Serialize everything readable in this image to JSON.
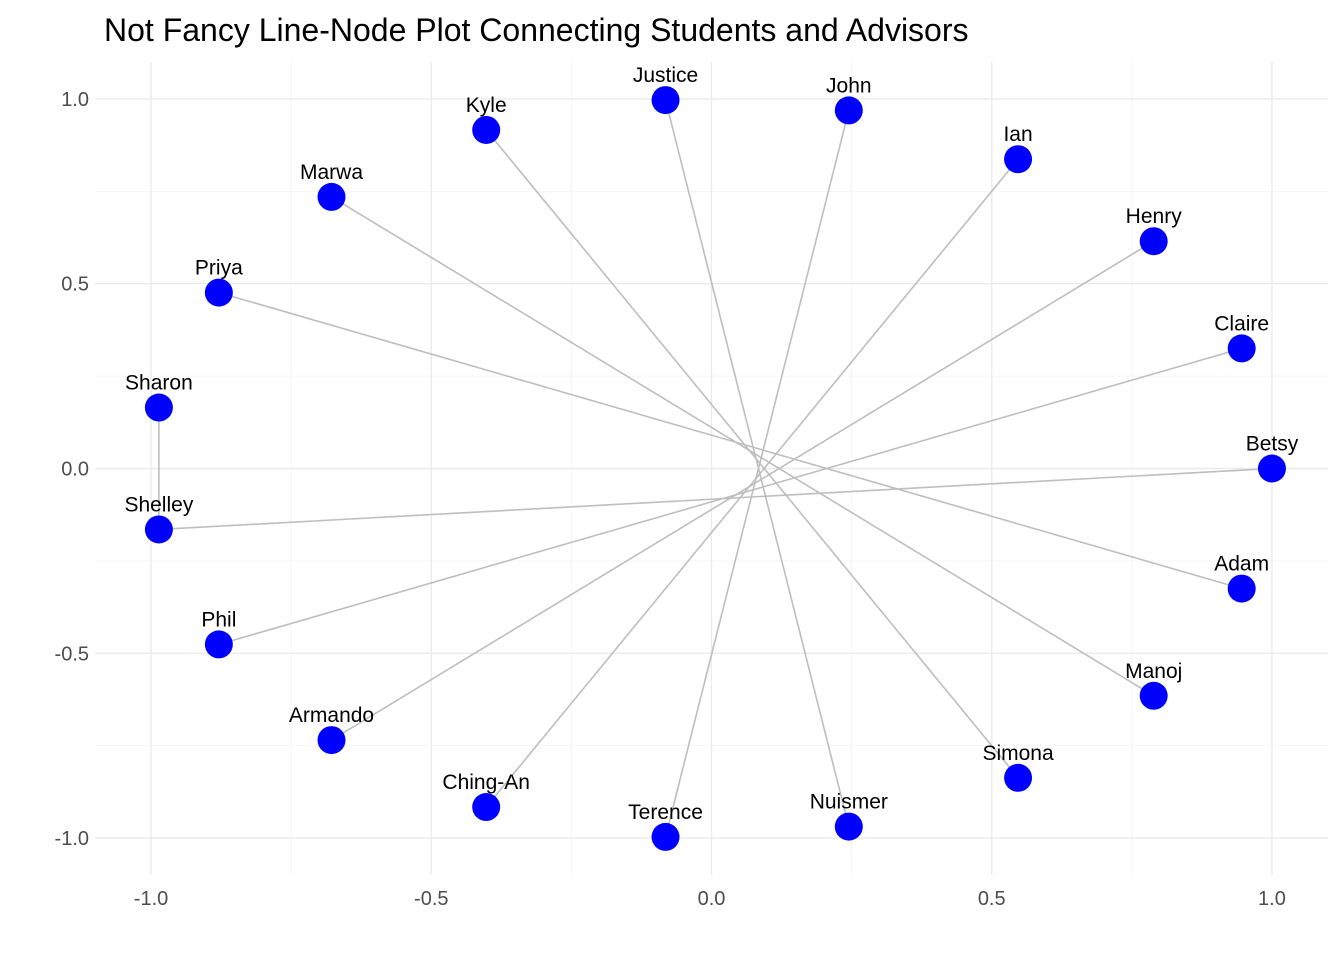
{
  "chart_data": {
    "type": "scatter",
    "title": "Not Fancy Line-Node Plot Connecting Students and Advisors",
    "xlabel": "",
    "ylabel": "",
    "xlim": [
      -1.1,
      1.1
    ],
    "ylim": [
      -1.1,
      1.1
    ],
    "x_ticks": [
      -1.0,
      -0.5,
      0.0,
      0.5,
      1.0
    ],
    "x_tick_labels": [
      "-1.0",
      "-0.5",
      "0.0",
      "0.5",
      "1.0"
    ],
    "y_ticks": [
      -1.0,
      -0.5,
      0.0,
      0.5,
      1.0
    ],
    "y_tick_labels": [
      "-1.0",
      "-0.5",
      "0.0",
      "0.5",
      "1.0"
    ],
    "grid": true,
    "node_color": "#0000ff",
    "edge_color": "#bebebe",
    "nodes": [
      {
        "name": "Betsy",
        "x": 1.0,
        "y": 0.0
      },
      {
        "name": "Claire",
        "x": 0.946,
        "y": 0.325
      },
      {
        "name": "Henry",
        "x": 0.789,
        "y": 0.615
      },
      {
        "name": "Ian",
        "x": 0.547,
        "y": 0.837
      },
      {
        "name": "John",
        "x": 0.245,
        "y": 0.969
      },
      {
        "name": "Justice",
        "x": -0.082,
        "y": 0.997
      },
      {
        "name": "Kyle",
        "x": -0.402,
        "y": 0.916
      },
      {
        "name": "Marwa",
        "x": -0.678,
        "y": 0.735
      },
      {
        "name": "Priya",
        "x": -0.879,
        "y": 0.476
      },
      {
        "name": "Sharon",
        "x": -0.986,
        "y": 0.165
      },
      {
        "name": "Shelley",
        "x": -0.986,
        "y": -0.165
      },
      {
        "name": "Phil",
        "x": -0.879,
        "y": -0.476
      },
      {
        "name": "Armando",
        "x": -0.678,
        "y": -0.735
      },
      {
        "name": "Ching-An",
        "x": -0.402,
        "y": -0.916
      },
      {
        "name": "Terence",
        "x": -0.082,
        "y": -0.997
      },
      {
        "name": "Nuismer",
        "x": 0.245,
        "y": -0.969
      },
      {
        "name": "Simona",
        "x": 0.547,
        "y": -0.837
      },
      {
        "name": "Manoj",
        "x": 0.789,
        "y": -0.615
      },
      {
        "name": "Adam",
        "x": 0.946,
        "y": -0.325
      }
    ],
    "edges": [
      [
        "Sharon",
        "Shelley"
      ],
      [
        "Shelley",
        "Betsy"
      ],
      [
        "Phil",
        "Claire"
      ],
      [
        "Armando",
        "Henry"
      ],
      [
        "Ching-An",
        "Ian"
      ],
      [
        "Terence",
        "John"
      ],
      [
        "Nuismer",
        "Justice"
      ],
      [
        "Simona",
        "Kyle"
      ],
      [
        "Manoj",
        "Marwa"
      ],
      [
        "Adam",
        "Priya"
      ]
    ]
  }
}
